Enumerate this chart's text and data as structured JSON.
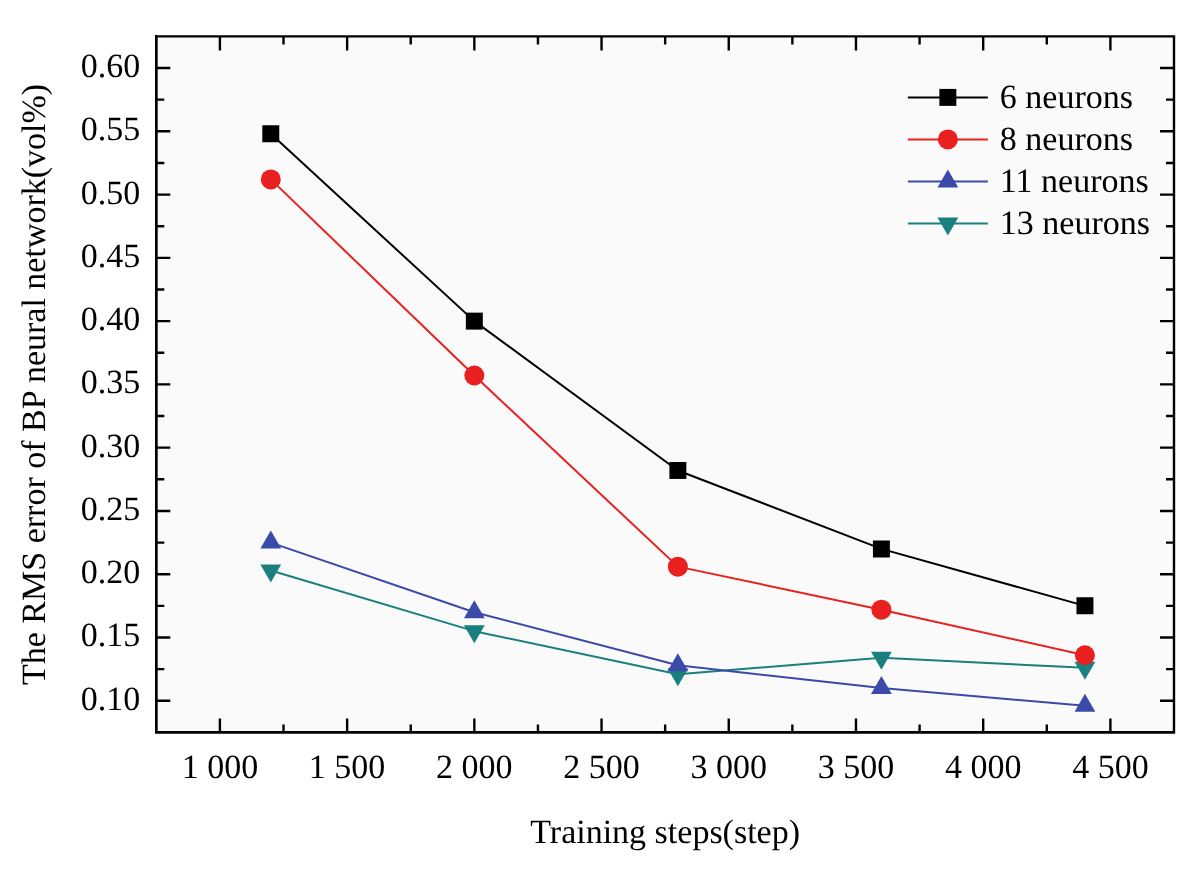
{
  "chart_data": {
    "type": "line",
    "xlabel": "Training steps(step)",
    "ylabel": "The RMS error of BP neural network(vol%)",
    "x": [
      1200,
      2000,
      2800,
      3600,
      4400
    ],
    "series": [
      {
        "name": "6 neurons",
        "color": "#000000",
        "marker": "square",
        "values": [
          0.548,
          0.4,
          0.282,
          0.22,
          0.175
        ]
      },
      {
        "name": "8 neurons",
        "color": "#e8201f",
        "marker": "circle",
        "values": [
          0.512,
          0.357,
          0.206,
          0.172,
          0.136
        ]
      },
      {
        "name": "11 neurons",
        "color": "#3a4aa8",
        "marker": "triangle",
        "values": [
          0.225,
          0.17,
          0.128,
          0.11,
          0.096
        ]
      },
      {
        "name": "13 neurons",
        "color": "#1a7f7f",
        "marker": "triangle-down",
        "values": [
          0.203,
          0.155,
          0.121,
          0.134,
          0.126
        ]
      }
    ],
    "xlim": [
      750,
      4750
    ],
    "xticks": [
      {
        "value": 1000,
        "label": "1 000"
      },
      {
        "value": 1250,
        "label": null
      },
      {
        "value": 1500,
        "label": "1 500"
      },
      {
        "value": 1750,
        "label": null
      },
      {
        "value": 2000,
        "label": "2 000"
      },
      {
        "value": 2250,
        "label": null
      },
      {
        "value": 2500,
        "label": "2 500"
      },
      {
        "value": 2750,
        "label": null
      },
      {
        "value": 3000,
        "label": "3 000"
      },
      {
        "value": 3250,
        "label": null
      },
      {
        "value": 3500,
        "label": "3 500"
      },
      {
        "value": 3750,
        "label": null
      },
      {
        "value": 4000,
        "label": "4 000"
      },
      {
        "value": 4250,
        "label": null
      },
      {
        "value": 4500,
        "label": "4 500"
      }
    ],
    "ylim": [
      0.075,
      0.625
    ],
    "yticks": [
      {
        "value": 0.1,
        "label": "0.10"
      },
      {
        "value": 0.125,
        "label": null
      },
      {
        "value": 0.15,
        "label": "0.15"
      },
      {
        "value": 0.175,
        "label": null
      },
      {
        "value": 0.2,
        "label": "0.20"
      },
      {
        "value": 0.225,
        "label": null
      },
      {
        "value": 0.25,
        "label": "0.25"
      },
      {
        "value": 0.275,
        "label": null
      },
      {
        "value": 0.3,
        "label": "0.30"
      },
      {
        "value": 0.325,
        "label": null
      },
      {
        "value": 0.35,
        "label": "0.35"
      },
      {
        "value": 0.375,
        "label": null
      },
      {
        "value": 0.4,
        "label": "0.40"
      },
      {
        "value": 0.425,
        "label": null
      },
      {
        "value": 0.45,
        "label": "0.45"
      },
      {
        "value": 0.475,
        "label": null
      },
      {
        "value": 0.5,
        "label": "0.50"
      },
      {
        "value": 0.525,
        "label": null
      },
      {
        "value": 0.55,
        "label": "0.55"
      },
      {
        "value": 0.575,
        "label": null
      },
      {
        "value": 0.6,
        "label": "0.60"
      }
    ],
    "legend": "top right",
    "grid": false,
    "line_style": "solid"
  }
}
